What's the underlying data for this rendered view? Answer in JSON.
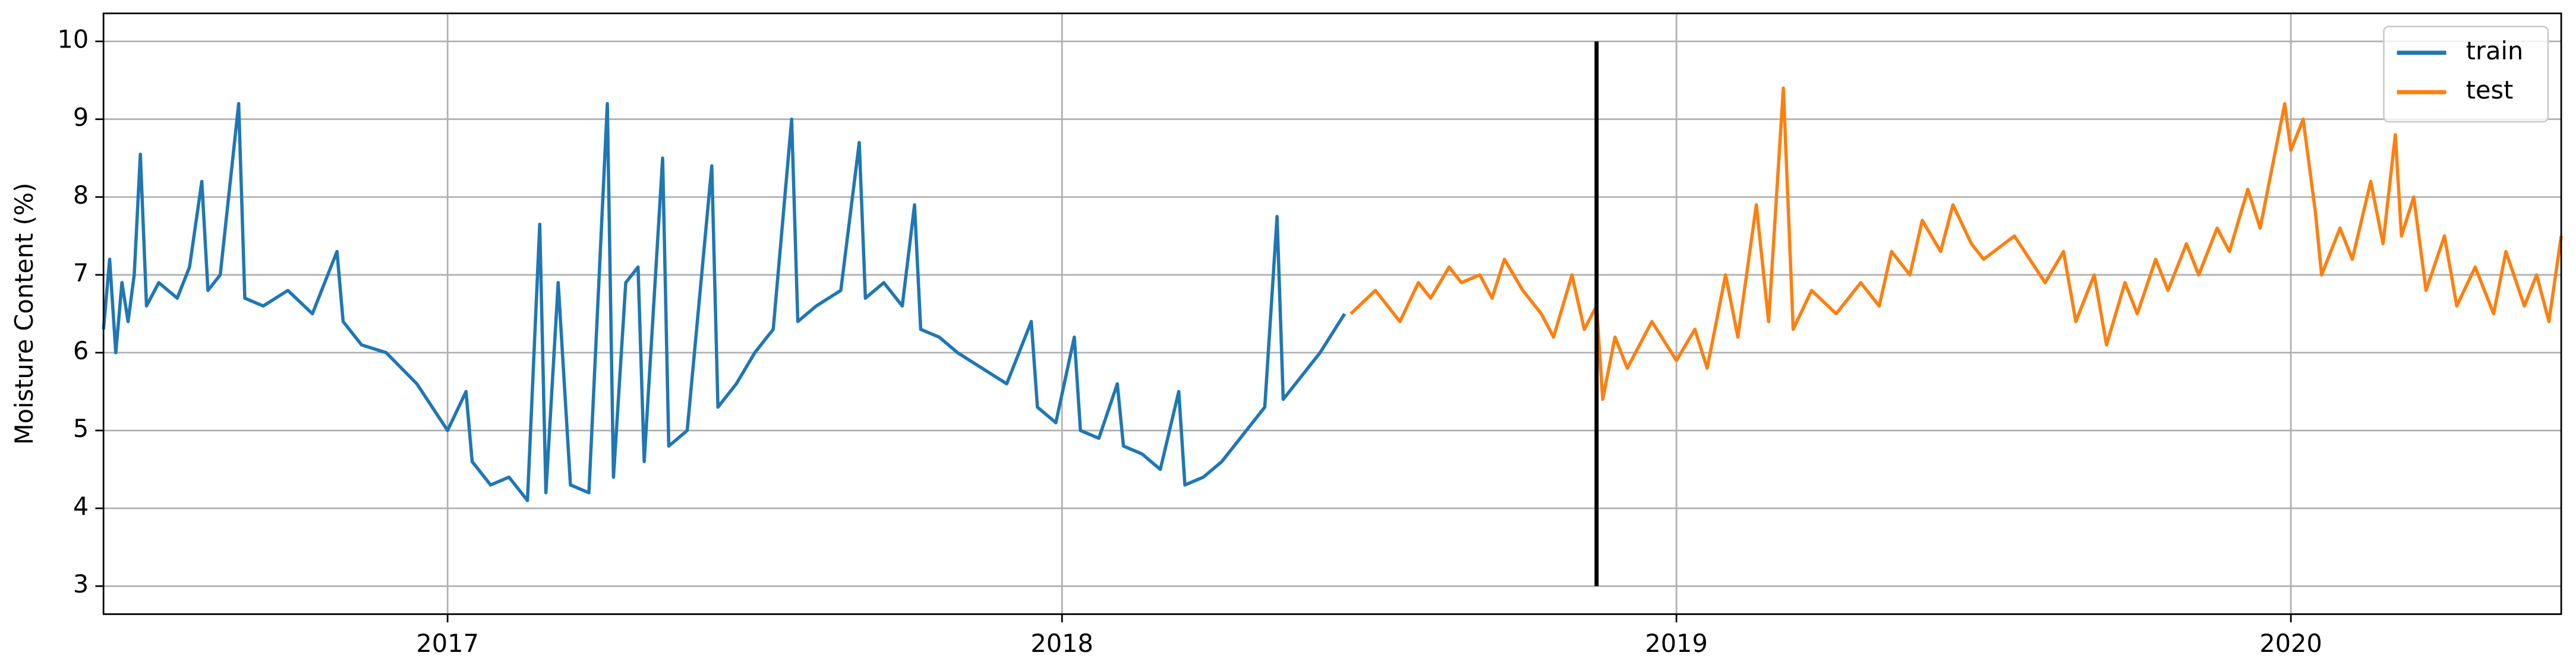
{
  "chart_data": {
    "type": "line",
    "ylabel": "Moisture Content (%)",
    "xlim": [
      2016.44,
      2020.44
    ],
    "xticks": [
      2017,
      2018,
      2019,
      2020
    ],
    "ylim": [
      2.64,
      10.36
    ],
    "yticks": [
      3,
      4,
      5,
      6,
      7,
      8,
      9,
      10
    ],
    "grid": true,
    "legend": "upper right",
    "vline": {
      "x": 2018.87,
      "ymin": 3,
      "ymax": 10,
      "color": "#000000"
    },
    "series": [
      {
        "name": "train",
        "color": "#1f77b4",
        "x": [
          2016.44,
          2016.45,
          2016.46,
          2016.47,
          2016.48,
          2016.49,
          2016.5,
          2016.51,
          2016.53,
          2016.56,
          2016.58,
          2016.6,
          2016.61,
          2016.63,
          2016.66,
          2016.67,
          2016.7,
          2016.74,
          2016.78,
          2016.82,
          2016.83,
          2016.86,
          2016.9,
          2016.95,
          2017.0,
          2017.03,
          2017.04,
          2017.07,
          2017.1,
          2017.13,
          2017.15,
          2017.16,
          2017.18,
          2017.2,
          2017.23,
          2017.26,
          2017.27,
          2017.29,
          2017.31,
          2017.32,
          2017.35,
          2017.36,
          2017.39,
          2017.43,
          2017.44,
          2017.47,
          2017.5,
          2017.53,
          2017.56,
          2017.57,
          2017.6,
          2017.64,
          2017.67,
          2017.68,
          2017.71,
          2017.74,
          2017.76,
          2017.77,
          2017.8,
          2017.83,
          2017.87,
          2017.91,
          2017.95,
          2017.96,
          2017.99,
          2018.02,
          2018.03,
          2018.06,
          2018.09,
          2018.1,
          2018.13,
          2018.16,
          2018.19,
          2018.2,
          2018.23,
          2018.26,
          2018.3,
          2018.33,
          2018.35,
          2018.36,
          2018.39,
          2018.42,
          2018.46
        ],
        "values": [
          6.3,
          7.2,
          6.0,
          6.9,
          6.4,
          7.0,
          8.55,
          6.6,
          6.9,
          6.7,
          7.1,
          8.2,
          6.8,
          7.0,
          9.2,
          6.7,
          6.6,
          6.8,
          6.5,
          7.3,
          6.4,
          6.1,
          6.0,
          5.6,
          5.0,
          5.5,
          4.6,
          4.3,
          4.4,
          4.1,
          7.65,
          4.2,
          6.9,
          4.3,
          4.2,
          9.2,
          4.4,
          6.9,
          7.1,
          4.6,
          8.5,
          4.8,
          5.0,
          8.4,
          5.3,
          5.6,
          6.0,
          6.3,
          9.0,
          6.4,
          6.6,
          6.8,
          8.7,
          6.7,
          6.9,
          6.6,
          7.9,
          6.3,
          6.2,
          6.0,
          5.8,
          5.6,
          6.4,
          5.3,
          5.1,
          6.2,
          5.0,
          4.9,
          5.6,
          4.8,
          4.7,
          4.5,
          5.5,
          4.3,
          4.4,
          4.6,
          5.0,
          5.3,
          7.75,
          5.4,
          5.7,
          6.0,
          6.5
        ]
      },
      {
        "name": "test",
        "color": "#ff7f0e",
        "x": [
          2018.47,
          2018.51,
          2018.55,
          2018.58,
          2018.6,
          2018.63,
          2018.65,
          2018.68,
          2018.7,
          2018.72,
          2018.75,
          2018.78,
          2018.8,
          2018.83,
          2018.85,
          2018.87,
          2018.88,
          2018.9,
          2018.92,
          2018.96,
          2019.0,
          2019.03,
          2019.05,
          2019.08,
          2019.1,
          2019.13,
          2019.15,
          2019.174,
          2019.19,
          2019.22,
          2019.26,
          2019.3,
          2019.33,
          2019.35,
          2019.38,
          2019.4,
          2019.43,
          2019.45,
          2019.48,
          2019.5,
          2019.55,
          2019.6,
          2019.63,
          2019.65,
          2019.68,
          2019.7,
          2019.73,
          2019.75,
          2019.78,
          2019.8,
          2019.83,
          2019.85,
          2019.88,
          2019.9,
          2019.93,
          2019.95,
          2019.97,
          2019.99,
          2020.0,
          2020.02,
          2020.04,
          2020.05,
          2020.08,
          2020.1,
          2020.13,
          2020.15,
          2020.17,
          2020.18,
          2020.2,
          2020.22,
          2020.25,
          2020.27,
          2020.3,
          2020.33,
          2020.35,
          2020.38,
          2020.4,
          2020.42,
          2020.44
        ],
        "values": [
          6.5,
          6.8,
          6.4,
          6.9,
          6.7,
          7.1,
          6.9,
          7.0,
          6.7,
          7.2,
          6.8,
          6.5,
          6.2,
          7.0,
          6.3,
          6.6,
          5.4,
          6.2,
          5.8,
          6.4,
          5.9,
          6.3,
          5.8,
          7.0,
          6.2,
          7.9,
          6.4,
          9.4,
          6.3,
          6.8,
          6.5,
          6.9,
          6.6,
          7.3,
          7.0,
          7.7,
          7.3,
          7.9,
          7.4,
          7.2,
          7.5,
          6.9,
          7.3,
          6.4,
          7.0,
          6.1,
          6.9,
          6.5,
          7.2,
          6.8,
          7.4,
          7.0,
          7.6,
          7.3,
          8.1,
          7.6,
          8.4,
          9.2,
          8.6,
          9.0,
          7.8,
          7.0,
          7.6,
          7.2,
          8.2,
          7.4,
          8.8,
          7.5,
          8.0,
          6.8,
          7.5,
          6.6,
          7.1,
          6.5,
          7.3,
          6.6,
          7.0,
          6.4,
          7.5
        ]
      }
    ]
  }
}
